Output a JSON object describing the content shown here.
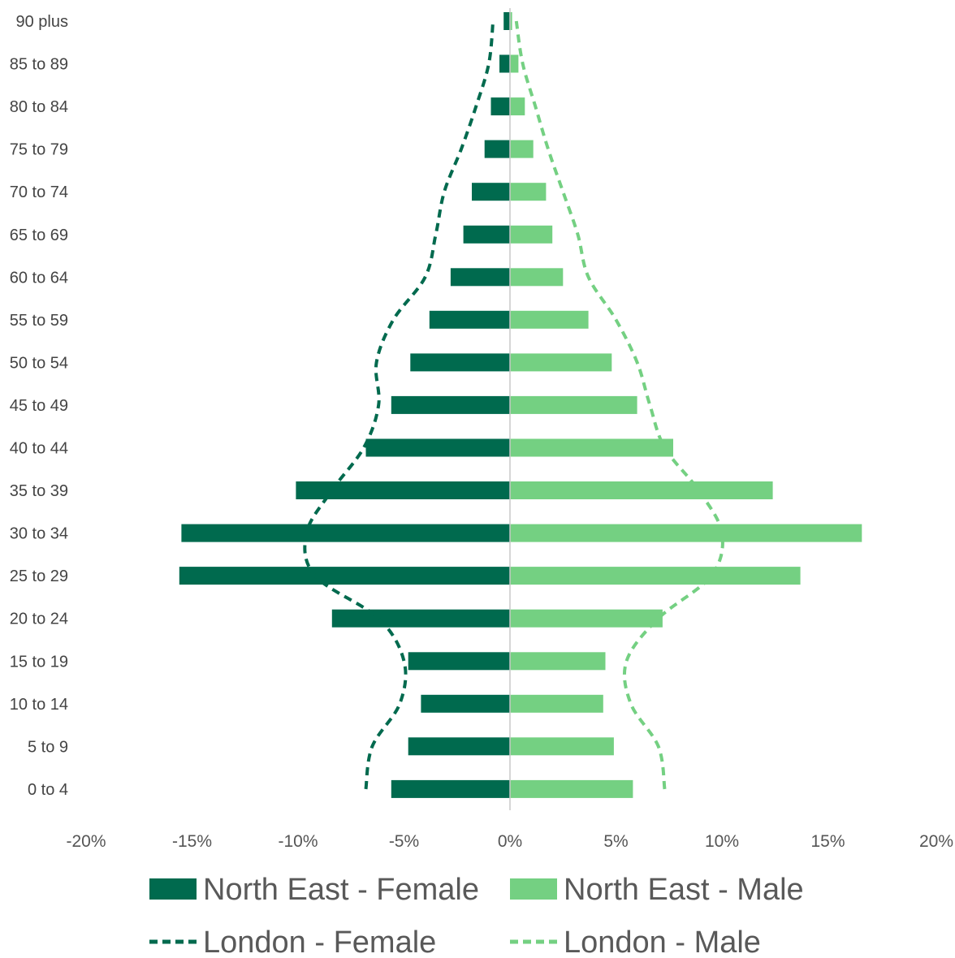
{
  "chart_data": {
    "type": "bar",
    "orientation": "horizontal",
    "subtype": "population-pyramid",
    "categories": [
      "0 to 4",
      "5 to 9",
      "10 to 14",
      "15 to 19",
      "20 to 24",
      "25 to 29",
      "30 to 34",
      "35 to 39",
      "40 to 44",
      "45 to 49",
      "50 to 54",
      "55 to 59",
      "60 to 64",
      "65 to 69",
      "70 to 74",
      "75 to 79",
      "80 to 84",
      "85 to 89",
      "90 plus"
    ],
    "series": [
      {
        "name": "North East - Female",
        "kind": "bar",
        "color": "#006a4e",
        "values": [
          -5.6,
          -4.8,
          -4.2,
          -4.8,
          -8.4,
          -15.6,
          -15.5,
          -10.1,
          -6.8,
          -5.6,
          -4.7,
          -3.8,
          -2.8,
          -2.2,
          -1.8,
          -1.2,
          -0.9,
          -0.5,
          -0.3
        ]
      },
      {
        "name": "North East - Male",
        "kind": "bar",
        "color": "#74d082",
        "values": [
          5.8,
          4.9,
          4.4,
          4.5,
          7.2,
          13.7,
          16.6,
          12.4,
          7.7,
          6.0,
          4.8,
          3.7,
          2.5,
          2.0,
          1.7,
          1.1,
          0.7,
          0.4,
          0.1
        ]
      },
      {
        "name": "London - Female",
        "kind": "line",
        "dash": true,
        "color": "#006a4e",
        "values": [
          -6.8,
          -6.5,
          -5.2,
          -5.0,
          -6.2,
          -9.2,
          -9.6,
          -8.4,
          -6.9,
          -6.2,
          -6.3,
          -5.5,
          -4.0,
          -3.5,
          -3.1,
          -2.3,
          -1.6,
          -1.0,
          -0.8
        ]
      },
      {
        "name": "London - Male",
        "kind": "line",
        "dash": true,
        "color": "#74d082",
        "values": [
          7.3,
          7.0,
          5.7,
          5.5,
          7.0,
          9.5,
          10.0,
          8.9,
          7.3,
          6.6,
          6.0,
          5.0,
          3.7,
          3.2,
          2.5,
          1.8,
          1.2,
          0.6,
          0.3
        ]
      }
    ],
    "xlim": [
      -20,
      20
    ],
    "xticks": [
      -20,
      -15,
      -10,
      -5,
      0,
      5,
      10,
      15,
      20
    ],
    "xtick_labels": [
      "-20%",
      "-15%",
      "-10%",
      "-5%",
      "0%",
      "5%",
      "10%",
      "15%",
      "20%"
    ],
    "legend": {
      "position": "bottom",
      "items": [
        "North East - Female",
        "North East - Male",
        "London - Female",
        "London - Male"
      ]
    },
    "grid": false
  }
}
